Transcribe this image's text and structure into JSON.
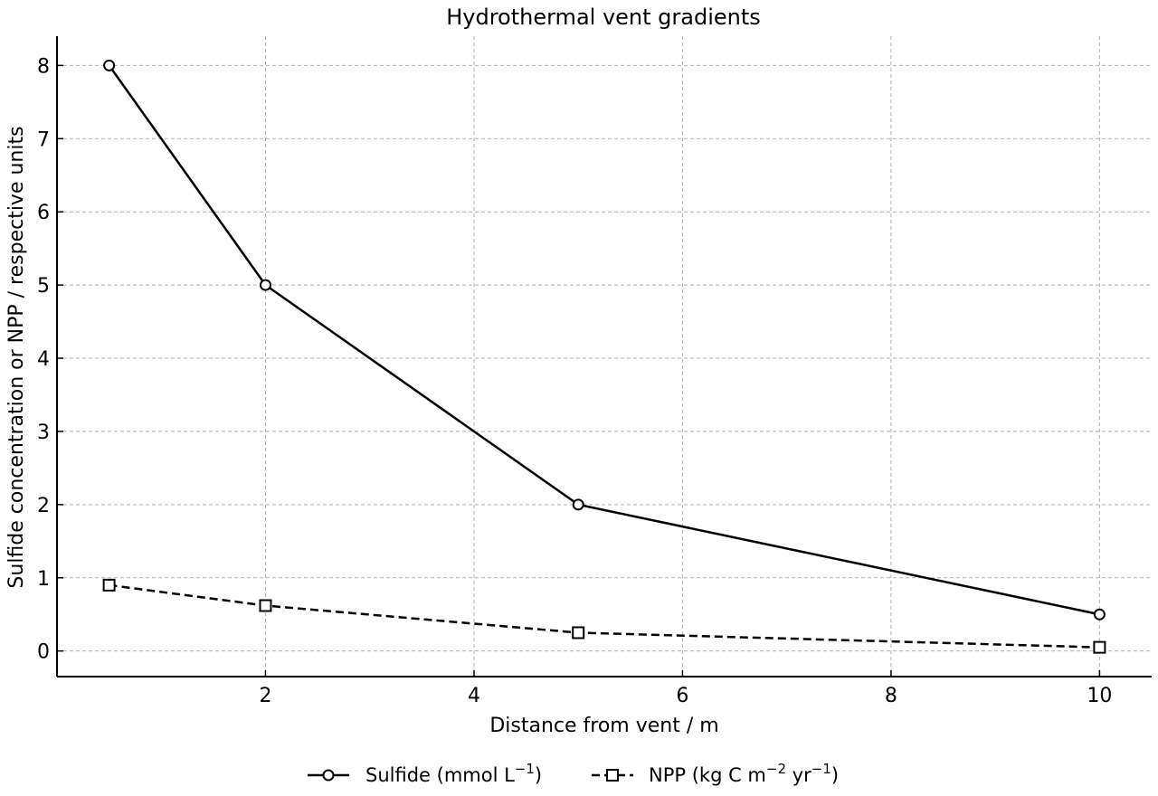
{
  "chart_data": {
    "type": "line",
    "title": "Hydrothermal vent gradients",
    "xlabel": "Distance from vent / m",
    "ylabel": "Sulfide concentration or NPP / respective units",
    "xlim": [
      0.0,
      10.5
    ],
    "ylim": [
      -0.35,
      8.4
    ],
    "xticks": [
      2,
      4,
      6,
      8,
      10
    ],
    "yticks": [
      0,
      1,
      2,
      3,
      4,
      5,
      6,
      7,
      8
    ],
    "grid": true,
    "legend_position": "bottom-center",
    "x": [
      0.5,
      2,
      5,
      10
    ],
    "series": [
      {
        "name": "Sulfide (mmol L⁻¹)",
        "label_parts": {
          "pre": "Sulfide (mmol L",
          "sup": "−1",
          "post": ")"
        },
        "values": [
          8.0,
          5.0,
          2.0,
          0.5
        ],
        "marker": "circle",
        "line_style": "solid",
        "color": "#000000"
      },
      {
        "name": "NPP (kg C m⁻² yr⁻¹)",
        "label_parts": {
          "pre": "NPP (kg C m",
          "sup": "−2",
          "mid": " yr",
          "sup2": "−1",
          "post": ")"
        },
        "values": [
          0.9,
          0.62,
          0.25,
          0.05
        ],
        "marker": "square",
        "line_style": "dashed",
        "color": "#000000"
      }
    ]
  }
}
